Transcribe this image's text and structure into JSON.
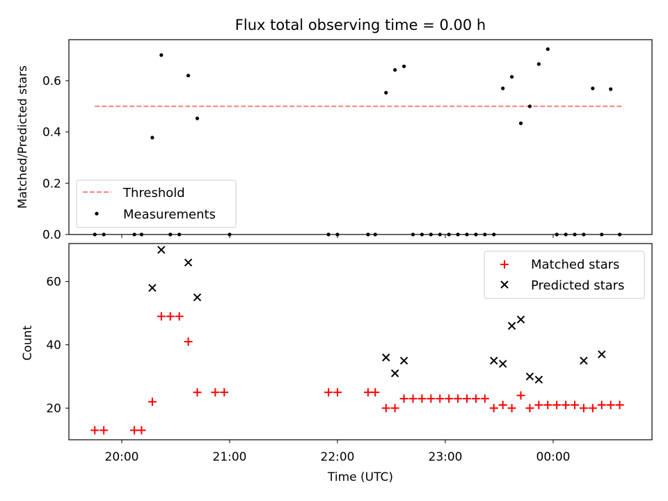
{
  "chart_data": [
    {
      "type": "scatter",
      "title": "Flux total observing time = 0.00 h",
      "ylabel": "Matched/Predicted stars",
      "xlabel": "",
      "ylim": [
        0,
        0.76
      ],
      "y_ticks": [
        0.0,
        0.2,
        0.4,
        0.6
      ],
      "y_tick_labels": [
        "0.0",
        "0.2",
        "0.4",
        "0.6"
      ],
      "x_ticks": [
        "20:00",
        "21:00",
        "22:00",
        "23:00",
        "00:00"
      ],
      "x_tick_labels_shown": false,
      "legend_position": "lower-left",
      "threshold": {
        "name": "Threshold",
        "y": 0.5,
        "x_start": "19:45",
        "x_end": "00:39",
        "color": "#ff7f7f",
        "style": "dashed"
      },
      "series": [
        {
          "name": "Measurements",
          "color": "#000000",
          "marker": "dot",
          "x": [
            "19:45",
            "19:50",
            "20:07",
            "20:11",
            "20:17",
            "20:22",
            "20:27",
            "20:32",
            "20:37",
            "20:42",
            "21:00",
            "21:55",
            "22:00",
            "22:17",
            "22:21",
            "22:27",
            "22:32",
            "22:37",
            "22:42",
            "22:47",
            "22:52",
            "22:57",
            "23:02",
            "23:07",
            "23:12",
            "23:17",
            "23:22",
            "23:27",
            "23:32",
            "23:37",
            "23:42",
            "23:47",
            "23:52",
            "23:57",
            "00:02",
            "00:07",
            "00:12",
            "00:17",
            "00:22",
            "00:27",
            "00:32",
            "00:37"
          ],
          "y": [
            0,
            0,
            0,
            0,
            0.378,
            0.7,
            0,
            0,
            0.62,
            0.453,
            0,
            0,
            0,
            0,
            0,
            0.553,
            0.642,
            0.656,
            0,
            0,
            0,
            0,
            0,
            0,
            0,
            0,
            0,
            0,
            0.57,
            0.615,
            0.434,
            0.5,
            0.665,
            0.723,
            0,
            0,
            0,
            0,
            0.57,
            0,
            0.567,
            0
          ]
        }
      ]
    },
    {
      "type": "scatter",
      "title": "",
      "ylabel": "Count",
      "xlabel": "Time (UTC)",
      "ylim": [
        10,
        72
      ],
      "y_ticks": [
        20,
        40,
        60
      ],
      "y_tick_labels": [
        "20",
        "40",
        "60"
      ],
      "x_ticks": [
        "20:00",
        "21:00",
        "22:00",
        "23:00",
        "00:00"
      ],
      "x_tick_labels": [
        "20:00",
        "21:00",
        "22:00",
        "23:00",
        "00:00"
      ],
      "legend_position": "upper-right",
      "series": [
        {
          "name": "Matched stars",
          "color": "#ff0000",
          "marker": "plus",
          "x": [
            "19:45",
            "19:50",
            "20:07",
            "20:11",
            "20:17",
            "20:22",
            "20:27",
            "20:32",
            "20:37",
            "20:42",
            "20:52",
            "20:57",
            "21:55",
            "22:00",
            "22:17",
            "22:21",
            "22:27",
            "22:32",
            "22:37",
            "22:42",
            "22:47",
            "22:52",
            "22:57",
            "23:02",
            "23:07",
            "23:12",
            "23:17",
            "23:22",
            "23:27",
            "23:32",
            "23:37",
            "23:42",
            "23:47",
            "23:52",
            "23:57",
            "00:02",
            "00:07",
            "00:12",
            "00:17",
            "00:22",
            "00:27",
            "00:32",
            "00:37"
          ],
          "y": [
            13,
            13,
            13,
            13,
            22,
            49,
            49,
            49,
            41,
            25,
            25,
            25,
            25,
            25,
            25,
            25,
            20,
            20,
            23,
            23,
            23,
            23,
            23,
            23,
            23,
            23,
            23,
            23,
            20,
            21,
            20,
            24,
            20,
            21,
            21,
            21,
            21,
            21,
            20,
            20,
            21,
            21,
            21
          ]
        },
        {
          "name": "Predicted stars",
          "color": "#000000",
          "marker": "x",
          "x": [
            "20:17",
            "20:22",
            "20:37",
            "20:42",
            "22:27",
            "22:32",
            "22:37",
            "23:27",
            "23:32",
            "23:37",
            "23:42",
            "23:47",
            "23:52",
            "00:17",
            "00:27"
          ],
          "y": [
            58,
            70,
            66,
            55,
            36,
            31,
            35,
            35,
            34,
            46,
            48,
            30,
            29,
            35,
            37
          ]
        }
      ]
    }
  ]
}
